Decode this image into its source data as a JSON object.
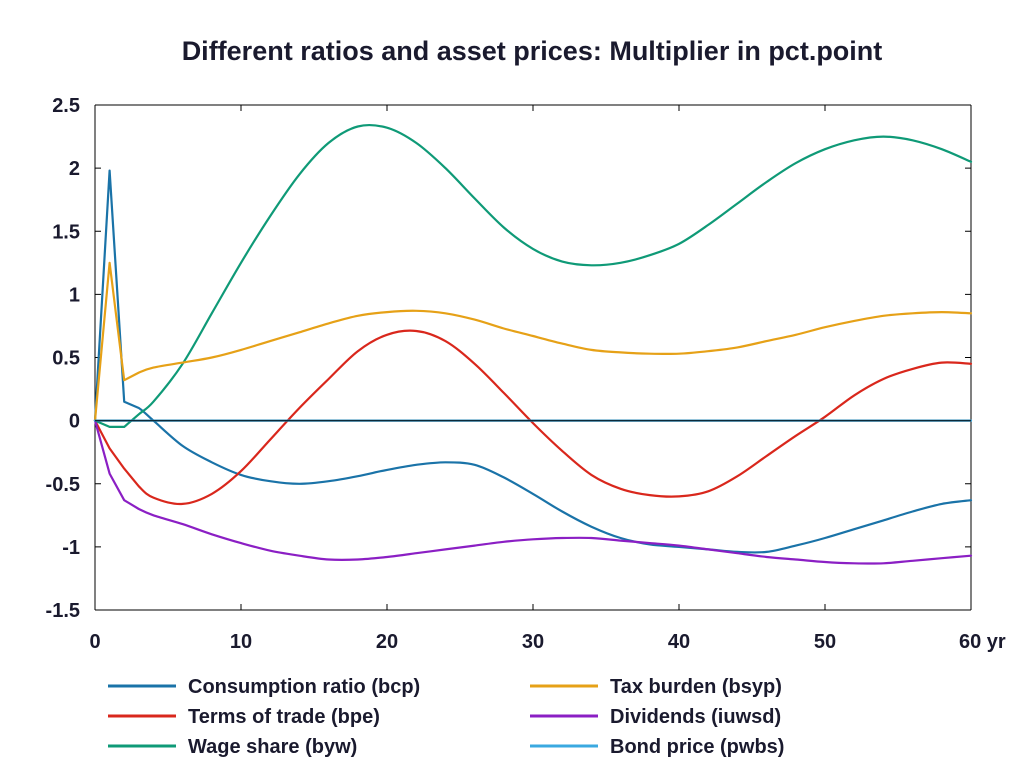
{
  "chart_data": {
    "type": "line",
    "title": "Different ratios and asset prices: Multiplier in pct.point",
    "xlabel": "",
    "ylabel": "",
    "x_unit_label": "yr",
    "xlim": [
      0,
      60
    ],
    "ylim": [
      -1.5,
      2.5
    ],
    "x_ticks": [
      "0",
      "10",
      "20",
      "30",
      "40",
      "50",
      "60 yr"
    ],
    "y_ticks": [
      "2.5",
      "2",
      "1.5",
      "1",
      "0.5",
      "0",
      "-0.5",
      "-1",
      "-1.5"
    ],
    "grid": false,
    "legend_position": "bottom",
    "x": [
      0,
      1,
      2,
      3,
      4,
      6,
      8,
      10,
      12,
      14,
      16,
      18,
      20,
      22,
      24,
      26,
      28,
      30,
      32,
      34,
      36,
      38,
      40,
      42,
      44,
      46,
      48,
      50,
      52,
      54,
      56,
      58,
      60
    ],
    "series": [
      {
        "name": "Consumption ratio (bcp)",
        "color": "#1a73a8",
        "values": [
          0,
          1.98,
          0.15,
          0.1,
          0.0,
          -0.2,
          -0.33,
          -0.43,
          -0.48,
          -0.5,
          -0.48,
          -0.44,
          -0.39,
          -0.35,
          -0.33,
          -0.35,
          -0.45,
          -0.58,
          -0.72,
          -0.84,
          -0.93,
          -0.98,
          -1.0,
          -1.02,
          -1.04,
          -1.04,
          -0.99,
          -0.93,
          -0.86,
          -0.79,
          -0.72,
          -0.66,
          -0.63
        ]
      },
      {
        "name": "Terms of trade (bpe)",
        "color": "#d9271c",
        "values": [
          0,
          -0.22,
          -0.38,
          -0.52,
          -0.61,
          -0.66,
          -0.58,
          -0.4,
          -0.15,
          0.1,
          0.33,
          0.55,
          0.68,
          0.71,
          0.63,
          0.45,
          0.22,
          -0.02,
          -0.24,
          -0.43,
          -0.54,
          -0.59,
          -0.6,
          -0.56,
          -0.44,
          -0.28,
          -0.12,
          0.03,
          0.2,
          0.33,
          0.41,
          0.46,
          0.45
        ]
      },
      {
        "name": "Wage share (byw)",
        "color": "#0f9a77",
        "values": [
          0,
          -0.05,
          -0.05,
          0.05,
          0.15,
          0.45,
          0.85,
          1.25,
          1.62,
          1.95,
          2.2,
          2.33,
          2.32,
          2.2,
          2.0,
          1.76,
          1.53,
          1.36,
          1.26,
          1.23,
          1.25,
          1.31,
          1.4,
          1.55,
          1.72,
          1.89,
          2.04,
          2.15,
          2.22,
          2.25,
          2.22,
          2.15,
          2.05
        ]
      },
      {
        "name": "Tax burden (bsyp)",
        "color": "#e6a117",
        "values": [
          0,
          1.25,
          0.32,
          0.38,
          0.42,
          0.46,
          0.5,
          0.56,
          0.63,
          0.7,
          0.77,
          0.83,
          0.86,
          0.87,
          0.85,
          0.8,
          0.73,
          0.67,
          0.61,
          0.56,
          0.54,
          0.53,
          0.53,
          0.55,
          0.58,
          0.63,
          0.68,
          0.74,
          0.79,
          0.83,
          0.85,
          0.86,
          0.85
        ]
      },
      {
        "name": "Dividends (iuwsd)",
        "color": "#8b1fc4",
        "values": [
          0,
          -0.42,
          -0.63,
          -0.7,
          -0.75,
          -0.82,
          -0.9,
          -0.97,
          -1.03,
          -1.07,
          -1.1,
          -1.1,
          -1.08,
          -1.05,
          -1.02,
          -0.99,
          -0.96,
          -0.94,
          -0.93,
          -0.93,
          -0.95,
          -0.97,
          -0.99,
          -1.02,
          -1.05,
          -1.08,
          -1.1,
          -1.12,
          -1.13,
          -1.13,
          -1.11,
          -1.09,
          -1.07
        ]
      },
      {
        "name": "Bond price (pwbs)",
        "color": "#3aa9e0",
        "values": [
          0,
          0,
          0,
          0,
          0,
          0,
          0,
          0,
          0,
          0,
          0,
          0,
          0,
          0,
          0,
          0,
          0,
          0,
          0,
          0,
          0,
          0,
          0,
          0,
          0,
          0,
          0,
          0,
          0,
          0,
          0,
          0,
          0
        ]
      }
    ],
    "zero_line_color": "#0b2a3a"
  }
}
